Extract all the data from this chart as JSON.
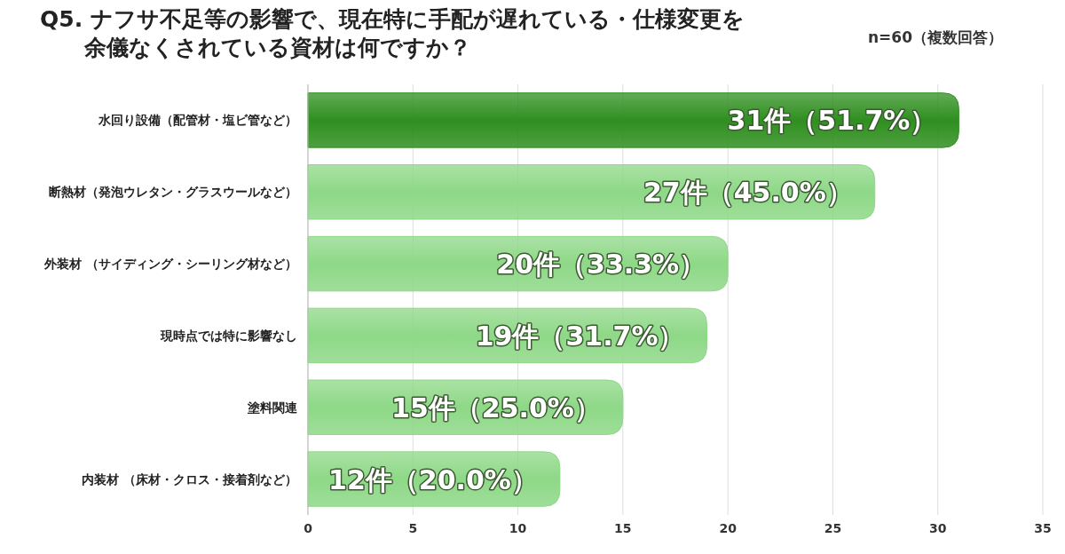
{
  "chart_data": {
    "type": "bar",
    "orientation": "horizontal",
    "title": "Q5. ナフサ不足等の影響で、現在特に手配が遅れている・仕様変更を余儀なくされている資材は何ですか？",
    "subtitle": "n=60（複数回答）",
    "categories": [
      "水回り設備（配管材・塩ビ管など）",
      "断熱材（発泡ウレタン・グラスウールなど）",
      "外装材 （サイディング・シーリング材など）",
      "現時点では特に影響なし",
      "塗料関連",
      "内装材 （床材・クロス・接着剤など）"
    ],
    "values": [
      31,
      27,
      20,
      19,
      15,
      12
    ],
    "value_labels": [
      "31件（51.7%）",
      "27件（45.0%）",
      "20件（33.3%）",
      "19件（31.7%）",
      "15件（25.0%）",
      "12件（20.0%）"
    ],
    "colors": [
      "#2f8f1f",
      "#8ed887",
      "#8ed887",
      "#8ed887",
      "#8ed887",
      "#8ed887"
    ],
    "xlim": [
      0,
      35
    ],
    "xticks": [
      0,
      5,
      10,
      15,
      20,
      25,
      30,
      35
    ],
    "grid": "x"
  }
}
